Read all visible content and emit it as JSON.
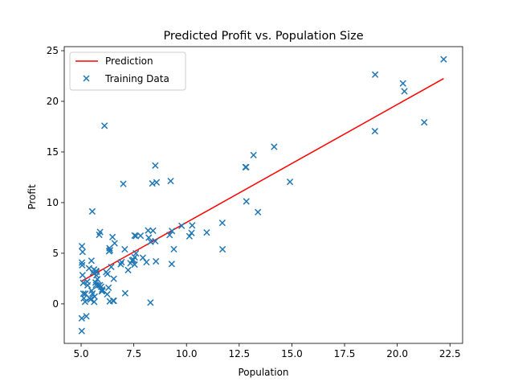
{
  "chart_data": {
    "type": "scatter",
    "title": "Predicted Profit vs. Population Size",
    "xlabel": "Population",
    "ylabel": "Profit",
    "xlim": [
      4.2,
      23.1
    ],
    "ylim": [
      -3.9,
      25.4
    ],
    "x_ticks": [
      5.0,
      7.5,
      10.0,
      12.5,
      15.0,
      17.5,
      20.0,
      22.5
    ],
    "x_tick_labels": [
      "5.0",
      "7.5",
      "10.0",
      "12.5",
      "15.0",
      "17.5",
      "20.0",
      "22.5"
    ],
    "y_ticks": [
      0,
      5,
      10,
      15,
      20,
      25
    ],
    "y_tick_labels": [
      "0",
      "5",
      "10",
      "15",
      "20",
      "25"
    ],
    "legend": {
      "position": "upper-left",
      "entries": [
        "Prediction",
        "Training Data"
      ]
    },
    "series": [
      {
        "name": "Prediction",
        "kind": "line",
        "color": "#ff0000",
        "x": [
          5.03,
          22.2
        ],
        "y": [
          2.25,
          22.25
        ]
      },
      {
        "name": "Training Data",
        "kind": "scatter",
        "marker": "x",
        "color": "#1f77b4",
        "points": [
          [
            6.11,
            17.59
          ],
          [
            5.53,
            9.13
          ],
          [
            8.52,
            13.66
          ],
          [
            7.0,
            11.85
          ],
          [
            5.86,
            6.82
          ],
          [
            8.38,
            11.89
          ],
          [
            7.48,
            4.35
          ],
          [
            8.58,
            12.0
          ],
          [
            6.49,
            6.6
          ],
          [
            5.05,
            3.82
          ],
          [
            5.71,
            3.25
          ],
          [
            14.16,
            15.51
          ],
          [
            5.73,
            3.16
          ],
          [
            8.41,
            7.23
          ],
          [
            5.64,
            0.72
          ],
          [
            5.38,
            3.51
          ],
          [
            6.37,
            5.3
          ],
          [
            5.13,
            0.56
          ],
          [
            6.43,
            3.65
          ],
          [
            7.07,
            5.39
          ],
          [
            6.19,
            3.14
          ],
          [
            20.27,
            21.77
          ],
          [
            5.49,
            4.26
          ],
          [
            6.33,
            5.19
          ],
          [
            5.56,
            3.08
          ],
          [
            18.95,
            22.64
          ],
          [
            12.83,
            13.5
          ],
          [
            10.96,
            7.05
          ],
          [
            13.18,
            14.69
          ],
          [
            22.2,
            24.15
          ],
          [
            5.25,
            -1.22
          ],
          [
            6.59,
            5.99
          ],
          [
            9.25,
            12.13
          ],
          [
            5.89,
            1.85
          ],
          [
            8.21,
            6.54
          ],
          [
            7.93,
            4.56
          ],
          [
            8.1,
            4.12
          ],
          [
            5.61,
            3.39
          ],
          [
            12.84,
            10.12
          ],
          [
            6.35,
            5.5
          ],
          [
            5.41,
            0.56
          ],
          [
            6.88,
            3.91
          ],
          [
            11.71,
            5.39
          ],
          [
            5.77,
            2.44
          ],
          [
            7.82,
            6.73
          ],
          [
            7.09,
            1.05
          ],
          [
            5.07,
            5.13
          ],
          [
            5.8,
            1.84
          ],
          [
            11.7,
            8.0
          ],
          [
            5.54,
            1.02
          ],
          [
            7.54,
            6.75
          ],
          [
            5.31,
            1.84
          ],
          [
            7.42,
            4.29
          ],
          [
            7.6,
            4.99
          ],
          [
            6.0,
            1.42
          ],
          [
            5.03,
            -1.42
          ],
          [
            6.55,
            2.48
          ],
          [
            7.54,
            4.61
          ],
          [
            5.04,
            4.08
          ],
          [
            10.24,
            7.0
          ],
          [
            5.1,
            2.07
          ],
          [
            5.71,
            1.87
          ],
          [
            20.34,
            20.99
          ],
          [
            10.14,
            6.68
          ],
          [
            7.34,
            4.02
          ],
          [
            6.01,
            1.28
          ],
          [
            7.23,
            3.34
          ],
          [
            5.03,
            -2.68
          ],
          [
            6.55,
            0.3
          ],
          [
            7.54,
            3.88
          ],
          [
            5.04,
            5.7
          ],
          [
            10.27,
            7.75
          ],
          [
            5.11,
            1.01
          ],
          [
            5.73,
            2.82
          ],
          [
            5.19,
            0.21
          ],
          [
            6.36,
            0.25
          ],
          [
            9.77,
            7.71
          ],
          [
            6.52,
            0.31
          ],
          [
            8.52,
            6.19
          ],
          [
            9.31,
            7.2
          ],
          [
            8.18,
            7.25
          ],
          [
            9.4,
            5.4
          ],
          [
            8.29,
            0.13
          ],
          [
            21.28,
            17.93
          ],
          [
            14.91,
            12.05
          ],
          [
            6.25,
            2.96
          ],
          [
            5.2,
            1.0
          ],
          [
            8.3,
            6.13
          ],
          [
            5.29,
            2.2
          ],
          [
            5.69,
            2.11
          ],
          [
            5.07,
            2.84
          ],
          [
            5.98,
            1.25
          ],
          [
            6.92,
            4.12
          ],
          [
            5.45,
            0.43
          ],
          [
            5.5,
            1.3
          ],
          [
            6.3,
            1.6
          ],
          [
            7.6,
            6.7
          ],
          [
            13.39,
            9.06
          ],
          [
            12.8,
            13.5
          ],
          [
            9.2,
            6.8
          ],
          [
            5.9,
            7.1
          ],
          [
            18.94,
            17.05
          ],
          [
            5.95,
            1.7
          ],
          [
            6.24,
            0.95
          ],
          [
            9.3,
            3.94
          ],
          [
            5.62,
            0.2
          ],
          [
            8.55,
            4.2
          ]
        ]
      }
    ]
  }
}
